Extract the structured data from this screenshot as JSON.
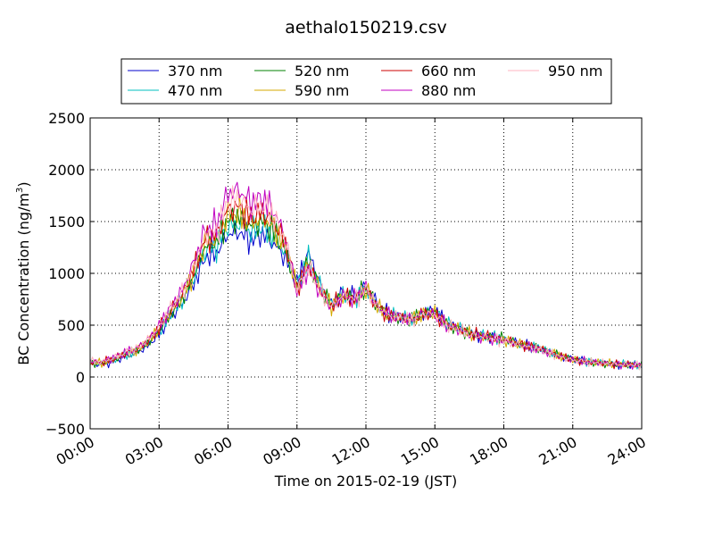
{
  "chart_data": {
    "type": "line",
    "title": "aethalo150219.csv",
    "xlabel": "Time on 2015-02-19 (JST)",
    "ylabel": "BC Concentration (ng/m^3)",
    "ylabel_main": "BC Concentration (ng/m",
    "ylabel_sup": "3",
    "ylabel_end": ")",
    "xlim": [
      0,
      24
    ],
    "ylim": [
      -500,
      2500
    ],
    "x_ticks": [
      0,
      3,
      6,
      9,
      12,
      15,
      18,
      21,
      24
    ],
    "x_tick_labels": [
      "00:00",
      "03:00",
      "06:00",
      "09:00",
      "12:00",
      "15:00",
      "18:00",
      "21:00",
      "24:00"
    ],
    "y_ticks": [
      -500,
      0,
      500,
      1000,
      1500,
      2000,
      2500
    ],
    "y_tick_labels": [
      "−500",
      "0",
      "500",
      "1000",
      "1500",
      "2000",
      "2500"
    ],
    "grid": true,
    "legend_position": "top-center",
    "x_hours": [
      0,
      0.5,
      1,
      1.5,
      2,
      2.5,
      3,
      3.5,
      4,
      4.5,
      5,
      5.5,
      6,
      6.5,
      7,
      7.5,
      8,
      8.5,
      9,
      9.5,
      10,
      10.5,
      11,
      11.5,
      12,
      12.5,
      13,
      13.5,
      14,
      14.5,
      15,
      15.5,
      16,
      16.5,
      17,
      17.5,
      18,
      18.5,
      19,
      19.5,
      20,
      20.5,
      21,
      21.5,
      22,
      22.5,
      23,
      23.5,
      24
    ],
    "series": [
      {
        "name": "370 nm",
        "color": "#0000cc",
        "values": [
          130,
          120,
          150,
          200,
          230,
          300,
          420,
          580,
          700,
          900,
          1150,
          1200,
          1380,
          1400,
          1320,
          1380,
          1280,
          1150,
          900,
          1200,
          900,
          700,
          820,
          780,
          880,
          700,
          600,
          580,
          560,
          620,
          640,
          520,
          480,
          420,
          400,
          380,
          360,
          330,
          300,
          280,
          240,
          200,
          170,
          150,
          140,
          130,
          120,
          120,
          110
        ]
      },
      {
        "name": "470 nm",
        "color": "#00bfbf",
        "values": [
          135,
          130,
          160,
          210,
          240,
          320,
          440,
          600,
          730,
          950,
          1220,
          1260,
          1460,
          1480,
          1400,
          1450,
          1350,
          1200,
          880,
          1150,
          880,
          700,
          800,
          760,
          860,
          690,
          600,
          580,
          560,
          620,
          630,
          520,
          480,
          420,
          400,
          390,
          370,
          330,
          300,
          280,
          240,
          200,
          170,
          150,
          140,
          135,
          125,
          120,
          110
        ]
      },
      {
        "name": "520 nm",
        "color": "#008000",
        "values": [
          140,
          130,
          165,
          215,
          250,
          330,
          450,
          610,
          750,
          980,
          1260,
          1300,
          1520,
          1540,
          1450,
          1500,
          1400,
          1230,
          870,
          1120,
          860,
          690,
          790,
          760,
          850,
          690,
          590,
          580,
          560,
          610,
          620,
          510,
          470,
          420,
          400,
          380,
          360,
          330,
          300,
          280,
          240,
          200,
          170,
          150,
          140,
          130,
          120,
          120,
          110
        ]
      },
      {
        "name": "590 nm",
        "color": "#d4aa00",
        "values": [
          140,
          135,
          170,
          220,
          255,
          335,
          460,
          620,
          770,
          1000,
          1290,
          1330,
          1560,
          1580,
          1490,
          1540,
          1440,
          1260,
          860,
          1100,
          850,
          690,
          790,
          750,
          850,
          680,
          590,
          570,
          560,
          610,
          620,
          510,
          470,
          420,
          400,
          380,
          360,
          330,
          300,
          280,
          240,
          200,
          170,
          150,
          140,
          130,
          120,
          120,
          110
        ]
      },
      {
        "name": "660 nm",
        "color": "#cc0000",
        "values": [
          145,
          140,
          175,
          225,
          260,
          345,
          470,
          640,
          790,
          1030,
          1330,
          1370,
          1620,
          1640,
          1540,
          1590,
          1490,
          1290,
          850,
          1080,
          840,
          680,
          780,
          750,
          850,
          680,
          590,
          570,
          550,
          610,
          610,
          510,
          470,
          420,
          400,
          380,
          360,
          330,
          300,
          280,
          240,
          200,
          170,
          150,
          140,
          130,
          120,
          120,
          110
        ]
      },
      {
        "name": "880 nm",
        "color": "#c000c0",
        "values": [
          150,
          150,
          185,
          235,
          275,
          360,
          490,
          670,
          830,
          1100,
          1420,
          1460,
          1780,
          1800,
          1680,
          1720,
          1600,
          1350,
          830,
          1050,
          820,
          670,
          780,
          750,
          860,
          680,
          600,
          580,
          550,
          620,
          600,
          500,
          460,
          410,
          390,
          370,
          350,
          320,
          290,
          270,
          230,
          190,
          160,
          150,
          140,
          130,
          120,
          120,
          110
        ]
      },
      {
        "name": "950 nm",
        "color": "#ffb6c1",
        "values": [
          150,
          145,
          180,
          230,
          270,
          355,
          480,
          660,
          810,
          1060,
          1370,
          1410,
          1690,
          1720,
          1610,
          1660,
          1550,
          1310,
          840,
          1060,
          830,
          670,
          780,
          750,
          850,
          680,
          590,
          570,
          550,
          610,
          600,
          500,
          460,
          410,
          390,
          370,
          350,
          320,
          290,
          270,
          230,
          190,
          160,
          150,
          140,
          130,
          120,
          120,
          110
        ]
      }
    ]
  }
}
